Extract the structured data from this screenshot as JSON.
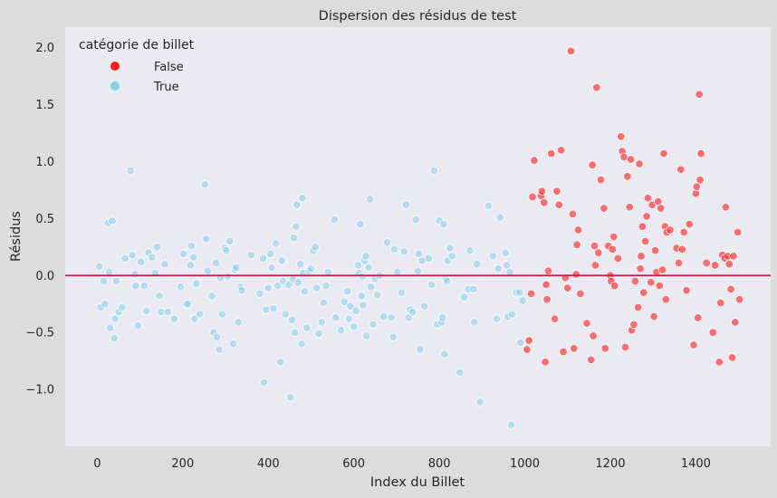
{
  "chart_data": {
    "type": "scatter",
    "title": "Dispersion des résidus de test",
    "xlabel": "Index du Billet",
    "ylabel": "Résidus",
    "xlim": [
      -75,
      1575
    ],
    "ylim": [
      -1.5,
      2.18
    ],
    "xticks": [
      0,
      200,
      400,
      600,
      800,
      1000,
      1200,
      1400
    ],
    "yticks": [
      -1.0,
      -0.5,
      0.0,
      0.5,
      1.0,
      1.5,
      2.0
    ],
    "ytick_labels": [
      "−1.0",
      "−0.5",
      "0.0",
      "0.5",
      "1.0",
      "1.5",
      "2.0"
    ],
    "grid": false,
    "hline": {
      "y": 0.0,
      "color": "#c9184a"
    },
    "legend": {
      "title": "catégorie de billet",
      "placement": "top-left",
      "entries": [
        {
          "label": "False",
          "color": "#ff1a1a"
        },
        {
          "label": "True",
          "color": "#87ceeb"
        }
      ]
    },
    "series": [
      {
        "name": "True",
        "color": "#87ceeb",
        "points": [
          [
            5,
            0.08
          ],
          [
            8,
            -0.28
          ],
          [
            15,
            -0.05
          ],
          [
            18,
            -0.25
          ],
          [
            25,
            0.46
          ],
          [
            28,
            0.03
          ],
          [
            30,
            -0.46
          ],
          [
            35,
            0.48
          ],
          [
            40,
            -0.55
          ],
          [
            42,
            -0.38
          ],
          [
            45,
            -0.05
          ],
          [
            50,
            -0.32
          ],
          [
            58,
            -0.28
          ],
          [
            65,
            0.15
          ],
          [
            78,
            0.92
          ],
          [
            82,
            0.18
          ],
          [
            88,
            0.01
          ],
          [
            90,
            -0.09
          ],
          [
            95,
            -0.44
          ],
          [
            102,
            0.12
          ],
          [
            110,
            -0.09
          ],
          [
            115,
            -0.31
          ],
          [
            120,
            0.2
          ],
          [
            128,
            0.16
          ],
          [
            135,
            0.02
          ],
          [
            140,
            0.25
          ],
          [
            145,
            -0.18
          ],
          [
            150,
            -0.32
          ],
          [
            158,
            0.1
          ],
          [
            165,
            -0.32
          ],
          [
            180,
            -0.38
          ],
          [
            195,
            -0.1
          ],
          [
            202,
            0.19
          ],
          [
            208,
            -0.25
          ],
          [
            212,
            -0.25
          ],
          [
            218,
            0.09
          ],
          [
            220,
            0.26
          ],
          [
            225,
            0.16
          ],
          [
            228,
            -0.38
          ],
          [
            232,
            -0.07
          ],
          [
            240,
            -0.34
          ],
          [
            252,
            0.8
          ],
          [
            255,
            0.32
          ],
          [
            258,
            0.04
          ],
          [
            268,
            -0.18
          ],
          [
            272,
            -0.5
          ],
          [
            278,
            0.11
          ],
          [
            280,
            -0.54
          ],
          [
            285,
            -0.65
          ],
          [
            288,
            -0.02
          ],
          [
            292,
            -0.34
          ],
          [
            298,
            0.24
          ],
          [
            302,
            0.22
          ],
          [
            305,
            -0.01
          ],
          [
            310,
            0.3
          ],
          [
            318,
            -0.6
          ],
          [
            322,
            0.05
          ],
          [
            325,
            0.07
          ],
          [
            330,
            -0.41
          ],
          [
            335,
            -0.1
          ],
          [
            338,
            -0.13
          ],
          [
            360,
            0.18
          ],
          [
            380,
            -0.16
          ],
          [
            388,
            0.15
          ],
          [
            390,
            -0.94
          ],
          [
            395,
            -0.3
          ],
          [
            400,
            -0.11
          ],
          [
            405,
            0.19
          ],
          [
            408,
            0.07
          ],
          [
            412,
            -0.29
          ],
          [
            418,
            0.28
          ],
          [
            422,
            -0.09
          ],
          [
            428,
            -0.76
          ],
          [
            432,
            0.13
          ],
          [
            435,
            -0.05
          ],
          [
            440,
            -0.34
          ],
          [
            448,
            -0.08
          ],
          [
            452,
            -1.07
          ],
          [
            455,
            -0.39
          ],
          [
            458,
            -0.03
          ],
          [
            460,
            0.33
          ],
          [
            462,
            -0.5
          ],
          [
            465,
            0.43
          ],
          [
            467,
            0.62
          ],
          [
            470,
            -0.06
          ],
          [
            475,
            0.1
          ],
          [
            478,
            -0.6
          ],
          [
            480,
            0.68
          ],
          [
            482,
            0.02
          ],
          [
            485,
            -0.14
          ],
          [
            490,
            -0.46
          ],
          [
            495,
            0.04
          ],
          [
            500,
            0.06
          ],
          [
            505,
            0.22
          ],
          [
            510,
            0.25
          ],
          [
            513,
            -0.11
          ],
          [
            518,
            -0.51
          ],
          [
            525,
            -0.41
          ],
          [
            530,
            -0.24
          ],
          [
            535,
            -0.09
          ],
          [
            540,
            0.03
          ],
          [
            555,
            0.49
          ],
          [
            558,
            -0.37
          ],
          [
            570,
            -0.48
          ],
          [
            578,
            -0.23
          ],
          [
            585,
            -0.14
          ],
          [
            588,
            -0.38
          ],
          [
            592,
            -0.27
          ],
          [
            600,
            -0.45
          ],
          [
            605,
            -0.31
          ],
          [
            610,
            0.09
          ],
          [
            612,
            0.02
          ],
          [
            615,
            0.45
          ],
          [
            618,
            -0.18
          ],
          [
            620,
            -0.01
          ],
          [
            622,
            -0.26
          ],
          [
            625,
            0.13
          ],
          [
            628,
            0.17
          ],
          [
            630,
            -0.53
          ],
          [
            635,
            0.07
          ],
          [
            638,
            0.67
          ],
          [
            640,
            -0.1
          ],
          [
            645,
            -0.43
          ],
          [
            650,
            -0.03
          ],
          [
            655,
            -0.17
          ],
          [
            660,
            0.0
          ],
          [
            670,
            -0.36
          ],
          [
            678,
            0.29
          ],
          [
            688,
            -0.37
          ],
          [
            692,
            -0.54
          ],
          [
            695,
            0.23
          ],
          [
            702,
            0.03
          ],
          [
            712,
            -0.15
          ],
          [
            718,
            0.21
          ],
          [
            722,
            0.62
          ],
          [
            728,
            -0.37
          ],
          [
            732,
            -0.3
          ],
          [
            738,
            -0.32
          ],
          [
            745,
            0.49
          ],
          [
            750,
            0.04
          ],
          [
            752,
            0.19
          ],
          [
            755,
            -0.65
          ],
          [
            760,
            0.13
          ],
          [
            765,
            -0.27
          ],
          [
            775,
            0.15
          ],
          [
            782,
            -0.08
          ],
          [
            788,
            0.92
          ],
          [
            795,
            -0.43
          ],
          [
            800,
            0.48
          ],
          [
            805,
            -0.41
          ],
          [
            808,
            -0.37
          ],
          [
            810,
            0.45
          ],
          [
            812,
            -0.69
          ],
          [
            815,
            -0.03
          ],
          [
            818,
            -0.05
          ],
          [
            820,
            0.13
          ],
          [
            825,
            0.24
          ],
          [
            830,
            0.17
          ],
          [
            848,
            -0.85
          ],
          [
            858,
            -0.19
          ],
          [
            868,
            -0.12
          ],
          [
            872,
            0.22
          ],
          [
            880,
            -0.12
          ],
          [
            882,
            -0.41
          ],
          [
            888,
            0.1
          ],
          [
            895,
            -1.11
          ],
          [
            915,
            0.61
          ],
          [
            925,
            0.17
          ],
          [
            935,
            -0.38
          ],
          [
            938,
            0.06
          ],
          [
            942,
            0.51
          ],
          [
            955,
            0.2
          ],
          [
            958,
            0.09
          ],
          [
            960,
            -0.36
          ],
          [
            965,
            0.03
          ],
          [
            968,
            -1.31
          ],
          [
            970,
            -0.34
          ],
          [
            980,
            -0.15
          ],
          [
            988,
            -0.15
          ],
          [
            990,
            -0.59
          ],
          [
            995,
            -0.22
          ]
        ]
      },
      {
        "name": "False",
        "color": "#ff1a1a",
        "points": [
          [
            1005,
            -0.65
          ],
          [
            1010,
            -0.57
          ],
          [
            1015,
            -0.16
          ],
          [
            1018,
            0.69
          ],
          [
            1022,
            1.01
          ],
          [
            1038,
            0.7
          ],
          [
            1040,
            0.74
          ],
          [
            1045,
            0.64
          ],
          [
            1048,
            -0.76
          ],
          [
            1050,
            -0.08
          ],
          [
            1052,
            -0.21
          ],
          [
            1055,
            0.04
          ],
          [
            1062,
            1.07
          ],
          [
            1070,
            -0.38
          ],
          [
            1075,
            0.74
          ],
          [
            1080,
            0.62
          ],
          [
            1085,
            1.1
          ],
          [
            1090,
            -0.67
          ],
          [
            1095,
            -0.02
          ],
          [
            1100,
            -0.11
          ],
          [
            1108,
            1.97
          ],
          [
            1112,
            0.54
          ],
          [
            1115,
            -0.64
          ],
          [
            1120,
            0.01
          ],
          [
            1122,
            0.27
          ],
          [
            1125,
            0.4
          ],
          [
            1130,
            -0.16
          ],
          [
            1145,
            -0.42
          ],
          [
            1155,
            -0.74
          ],
          [
            1158,
            0.97
          ],
          [
            1160,
            -0.53
          ],
          [
            1163,
            0.26
          ],
          [
            1165,
            0.09
          ],
          [
            1168,
            1.65
          ],
          [
            1172,
            0.2
          ],
          [
            1178,
            0.84
          ],
          [
            1185,
            0.59
          ],
          [
            1188,
            -0.64
          ],
          [
            1195,
            0.26
          ],
          [
            1200,
            0.0
          ],
          [
            1202,
            -0.05
          ],
          [
            1205,
            0.23
          ],
          [
            1208,
            0.34
          ],
          [
            1210,
            -0.09
          ],
          [
            1218,
            0.15
          ],
          [
            1225,
            1.22
          ],
          [
            1228,
            1.09
          ],
          [
            1232,
            1.04
          ],
          [
            1235,
            -0.63
          ],
          [
            1240,
            0.87
          ],
          [
            1245,
            0.6
          ],
          [
            1248,
            1.02
          ],
          [
            1250,
            -0.48
          ],
          [
            1255,
            -0.43
          ],
          [
            1258,
            -0.05
          ],
          [
            1265,
            -0.28
          ],
          [
            1268,
            0.98
          ],
          [
            1270,
            0.06
          ],
          [
            1272,
            0.17
          ],
          [
            1275,
            0.43
          ],
          [
            1278,
            -0.15
          ],
          [
            1282,
            0.3
          ],
          [
            1285,
            0.52
          ],
          [
            1288,
            0.68
          ],
          [
            1295,
            -0.06
          ],
          [
            1298,
            0.62
          ],
          [
            1302,
            -0.36
          ],
          [
            1305,
            0.22
          ],
          [
            1308,
            0.03
          ],
          [
            1312,
            0.65
          ],
          [
            1315,
            -0.09
          ],
          [
            1318,
            0.59
          ],
          [
            1322,
            0.05
          ],
          [
            1325,
            1.07
          ],
          [
            1328,
            0.43
          ],
          [
            1330,
            -0.21
          ],
          [
            1332,
            0.38
          ],
          [
            1340,
            0.4
          ],
          [
            1355,
            0.24
          ],
          [
            1360,
            0.11
          ],
          [
            1365,
            0.93
          ],
          [
            1368,
            0.23
          ],
          [
            1372,
            0.38
          ],
          [
            1378,
            -0.13
          ],
          [
            1385,
            0.45
          ],
          [
            1395,
            -0.61
          ],
          [
            1400,
            0.72
          ],
          [
            1402,
            0.78
          ],
          [
            1405,
            -0.37
          ],
          [
            1408,
            1.59
          ],
          [
            1410,
            0.84
          ],
          [
            1412,
            1.07
          ],
          [
            1425,
            0.11
          ],
          [
            1440,
            -0.5
          ],
          [
            1445,
            0.09
          ],
          [
            1455,
            -0.76
          ],
          [
            1458,
            -0.24
          ],
          [
            1462,
            0.18
          ],
          [
            1468,
            0.15
          ],
          [
            1470,
            0.6
          ],
          [
            1475,
            0.17
          ],
          [
            1478,
            0.1
          ],
          [
            1482,
            -0.12
          ],
          [
            1485,
            -0.72
          ],
          [
            1488,
            0.17
          ],
          [
            1492,
            -0.41
          ],
          [
            1498,
            0.38
          ],
          [
            1502,
            -0.21
          ]
        ]
      }
    ]
  }
}
